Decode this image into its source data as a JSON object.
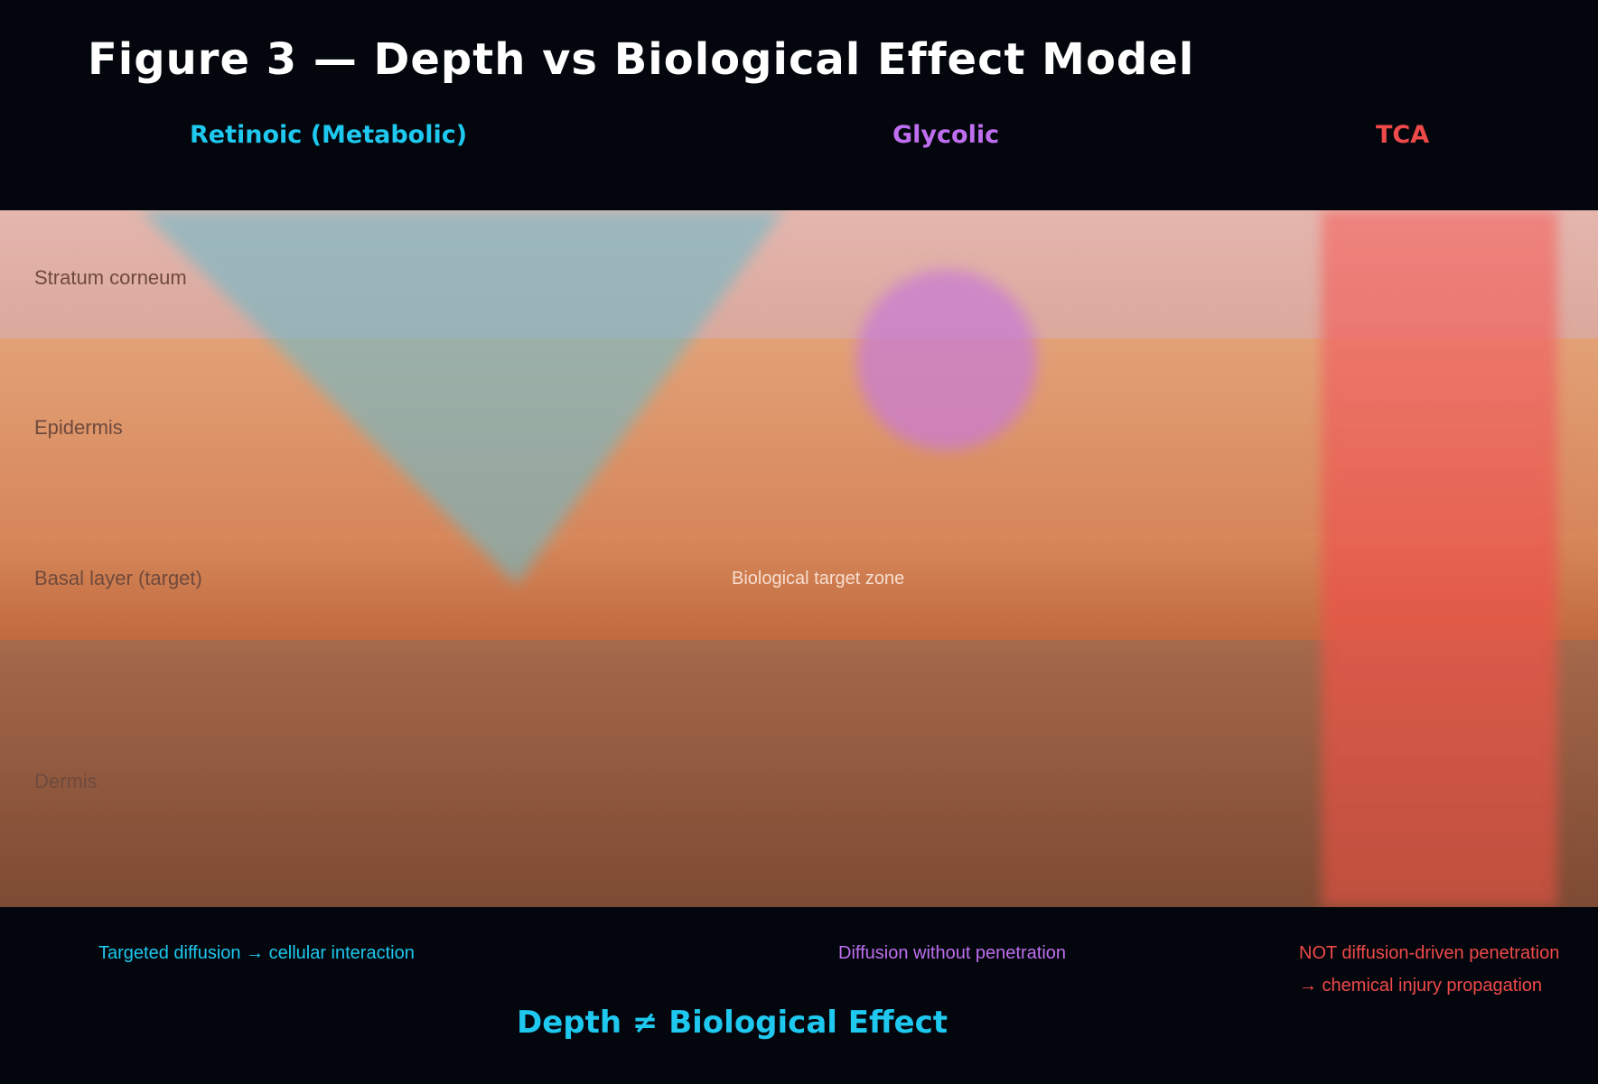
{
  "title": "Figure 3 — Depth vs Biological Effect Model",
  "columns": {
    "retinoic": "Retinoic (Metabolic)",
    "glycolic": "Glycolic",
    "tca": "TCA"
  },
  "layers": {
    "stratum": "Stratum corneum",
    "epidermis": "Epidermis",
    "basal": "Basal layer (target)",
    "dermis": "Dermis"
  },
  "target_zone": "Biological target zone",
  "captions": {
    "retinoic": "Targeted diffusion → cellular interaction",
    "glycolic": "Diffusion without penetration",
    "tca_line1": "NOT diffusion-driven penetration",
    "tca_line2": "→ chemical injury propagation"
  },
  "conclusion": "Depth ≠ Biological Effect",
  "colors": {
    "retinoic": "#1ec8ef",
    "glycolic": "#c06ef0",
    "tca": "#f0494a",
    "background": "#03070d"
  }
}
